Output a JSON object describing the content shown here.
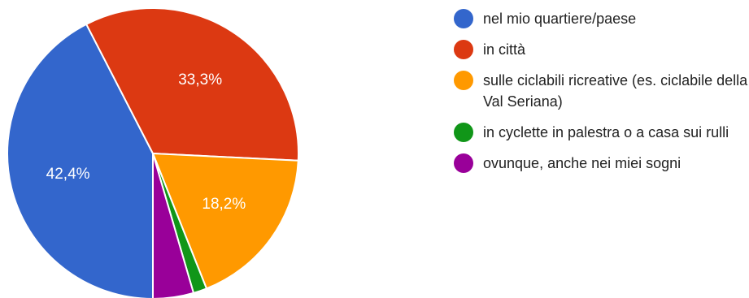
{
  "chart_data": {
    "type": "pie",
    "title": "",
    "start_angle_deg": 90,
    "direction": "clockwise",
    "legend_position": "right",
    "slices": [
      {
        "label": "nel mio quartiere/paese",
        "value": 42.4,
        "value_label": "42,4%",
        "color": "#3366cc"
      },
      {
        "label": "in città",
        "value": 33.3,
        "value_label": "33,3%",
        "color": "#dc3912"
      },
      {
        "label": "sulle ciclabili ricreative (es. ciclabile della Val Seriana)",
        "value": 18.2,
        "value_label": "18,2%",
        "color": "#ff9900"
      },
      {
        "label": "in cyclette in palestra o a casa sui rulli",
        "value": 1.5,
        "value_label": "",
        "color": "#109618"
      },
      {
        "label": "ovunque, anche nei miei sogni",
        "value": 4.5,
        "value_label": "",
        "color": "#990099"
      }
    ]
  }
}
